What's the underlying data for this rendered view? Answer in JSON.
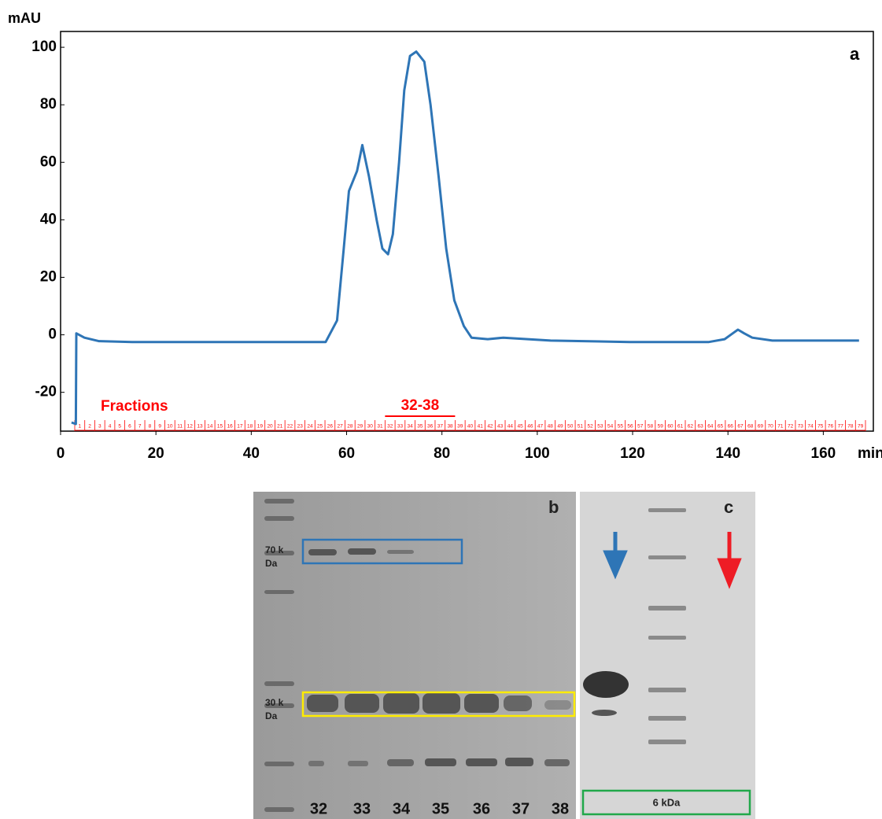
{
  "chart_data": {
    "type": "line",
    "panel_label": "a",
    "ylabel": "mAU",
    "xlabel": "min",
    "color": "#2e75b6",
    "x": [
      2.3,
      3.2,
      3.3,
      5,
      8,
      15,
      40,
      55.6,
      58.0,
      59.4,
      60.5,
      62.2,
      63.3,
      64.7,
      66.3,
      67.5,
      68.7,
      69.7,
      71.0,
      72.1,
      73.3,
      74.6,
      76.3,
      77.6,
      79.3,
      80.9,
      82.6,
      84.6,
      86.2,
      89.6,
      92.9,
      102.8,
      119.4,
      136.0,
      139.3,
      141.0,
      142.1,
      143.4,
      145.1,
      149.3,
      167.5
    ],
    "values": [
      -30.5,
      -31,
      0.5,
      -1,
      -2.2,
      -2.5,
      -2.5,
      -2.5,
      5,
      30,
      50,
      57,
      66,
      55,
      40,
      30,
      28,
      35,
      60,
      85,
      97,
      98.5,
      95,
      80,
      55,
      30,
      12,
      3,
      -1,
      -1.5,
      -1,
      -2,
      -2.5,
      -2.5,
      -1.5,
      0.5,
      1.8,
      0.5,
      -1,
      -2,
      -2
    ],
    "xlim": [
      0,
      170.5
    ],
    "ylim": [
      -33.5,
      105.5
    ],
    "xticks": [
      0,
      20,
      40,
      60,
      80,
      100,
      120,
      140,
      160
    ],
    "yticks": [
      -20,
      0,
      20,
      40,
      60,
      80,
      100
    ],
    "fractions": {
      "label": "Fractions",
      "highlight": "32-38",
      "highlight_range": [
        32,
        38
      ],
      "color": "#ff0000",
      "numbers": [
        1,
        2,
        3,
        4,
        5,
        6,
        7,
        8,
        9,
        10,
        11,
        12,
        13,
        14,
        15,
        16,
        17,
        18,
        19,
        20,
        21,
        22,
        23,
        24,
        25,
        26,
        27,
        28,
        29,
        30,
        31,
        32,
        33,
        34,
        35,
        36,
        37,
        38,
        39,
        40,
        41,
        42,
        43,
        44,
        45,
        46,
        47,
        48,
        49,
        50,
        51,
        52,
        53,
        54,
        55,
        56,
        57,
        58,
        59,
        60,
        61,
        62,
        63,
        64,
        65,
        66,
        67,
        68,
        69,
        70,
        71,
        72,
        73,
        74,
        75,
        76,
        77,
        78,
        79
      ]
    }
  },
  "gel_b": {
    "label": "b",
    "markers": [
      [
        "70 k",
        "Da"
      ],
      [
        "30 k",
        "Da"
      ]
    ],
    "lanes": [
      "32",
      "33",
      "34",
      "35",
      "36",
      "37",
      "38"
    ]
  },
  "gel_c": {
    "label": "c",
    "box_label": "6 kDa"
  }
}
